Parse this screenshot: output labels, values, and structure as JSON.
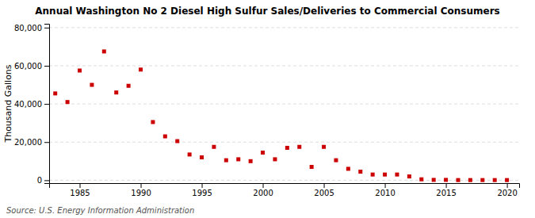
{
  "chart_data": {
    "type": "scatter",
    "title": "Annual Washington No 2 Diesel High Sulfur Sales/Deliveries to Commercial Consumers",
    "ylabel": "Thousand Gallons",
    "annotations": [
      "Source: U.S. Energy Information Administration"
    ],
    "color": "#cc0000",
    "marker": "square",
    "grid": true,
    "xlim": [
      1982.5,
      2021
    ],
    "ylim": [
      -1500,
      82000
    ],
    "xticks": [
      1985,
      1990,
      1995,
      2000,
      2005,
      2010,
      2015,
      2020
    ],
    "yticks": [
      0,
      {
        "value": 20000,
        "label": "20,000"
      },
      {
        "value": 40000,
        "label": "40,000"
      },
      {
        "value": 60000,
        "label": "60,000"
      },
      {
        "value": 80000,
        "label": "80,000"
      }
    ],
    "x": [
      1983,
      1984,
      1985,
      1986,
      1987,
      1988,
      1989,
      1990,
      1991,
      1992,
      1993,
      1994,
      1995,
      1996,
      1997,
      1998,
      1999,
      2000,
      2001,
      2002,
      2003,
      2004,
      2005,
      2006,
      2007,
      2008,
      2009,
      2010,
      2011,
      2012,
      2013,
      2014,
      2015,
      2016,
      2017,
      2018,
      2019,
      2020
    ],
    "values": [
      45500,
      41000,
      57500,
      50000,
      67500,
      46000,
      49500,
      58000,
      30500,
      23000,
      20500,
      13500,
      12000,
      17500,
      10500,
      11000,
      10000,
      14500,
      11000,
      17000,
      17500,
      7000,
      17500,
      10500,
      6000,
      4500,
      3000,
      3000,
      3000,
      2000,
      500,
      200,
      200,
      100,
      100,
      100,
      100,
      100
    ]
  }
}
